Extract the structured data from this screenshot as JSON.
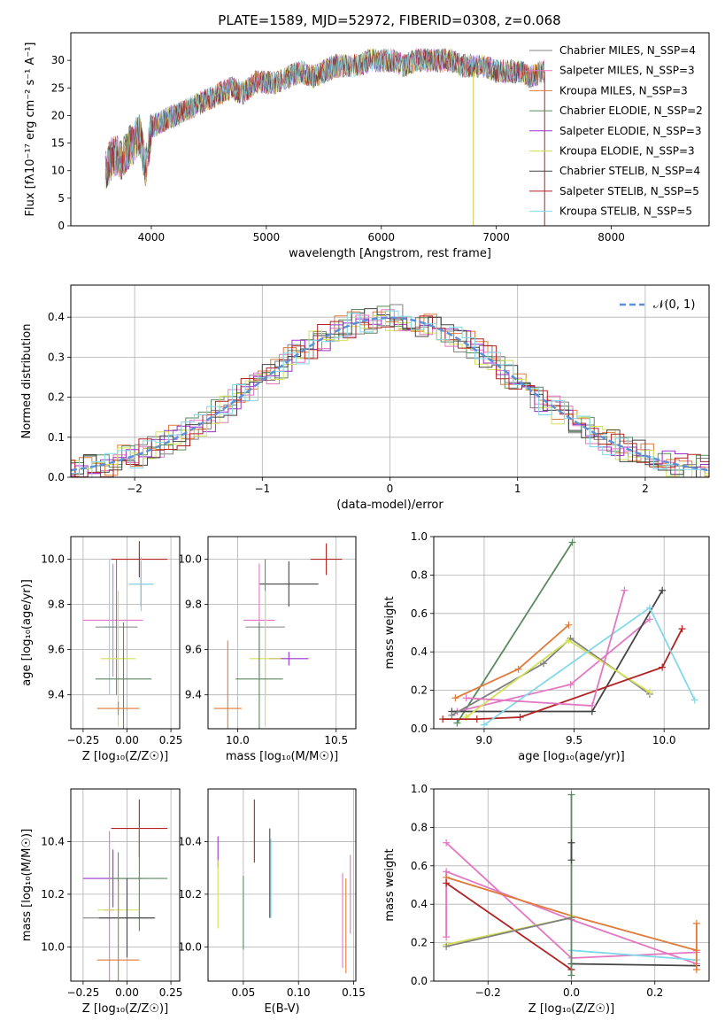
{
  "figure_title": "PLATE=1589, MJD=52972, FIBERID=0308, z=0.068",
  "colors": [
    "#808080",
    "#e377c2",
    "#e07b39",
    "#5a8a5f",
    "#9b30c9",
    "#d4e157",
    "#444444",
    "#b22222",
    "#80d8e8"
  ],
  "chart_data": [
    {
      "id": "spectrum",
      "type": "line",
      "title": "PLATE=1589, MJD=52972, FIBERID=0308, z=0.068",
      "xlabel": "wavelength [Angstrom, rest frame]",
      "ylabel": "Flux [fλ10⁻¹⁷ erg cm⁻² s⁻¹ A⁻¹]",
      "xlim": [
        3300,
        8850
      ],
      "ylim": [
        0,
        35
      ],
      "xticks": [
        "4000",
        "5000",
        "6000",
        "7000",
        "8000"
      ],
      "yticks": [
        "0",
        "5",
        "10",
        "15",
        "20",
        "25",
        "30"
      ],
      "grid": false,
      "legend": "top-right",
      "x": [
        3600,
        3650,
        3700,
        3750,
        3800,
        3850,
        3900,
        3950,
        4000,
        4100,
        4200,
        4300,
        4400,
        4500,
        4600,
        4700,
        4800,
        4900,
        5000,
        5100,
        5200,
        5300,
        5400,
        5500,
        5600,
        5700,
        5800,
        5900,
        6000,
        6100,
        6200,
        6300,
        6400,
        6500,
        6600,
        6700,
        6800,
        6900,
        7000,
        7100,
        7200,
        7300,
        7400
      ],
      "y_model": [
        10,
        12,
        13,
        12,
        14,
        15,
        17,
        10,
        18,
        19,
        20,
        21,
        22,
        23,
        24,
        25,
        24,
        26,
        26,
        26,
        27,
        28,
        27,
        28,
        29,
        29,
        29,
        30,
        30,
        30,
        29,
        30,
        30,
        30,
        30,
        29,
        29,
        29,
        28,
        28,
        28,
        27,
        28
      ],
      "series": [
        {
          "name": "Chabrier MILES, N_SSP=4"
        },
        {
          "name": "Salpeter MILES, N_SSP=3"
        },
        {
          "name": "Kroupa MILES, N_SSP=3"
        },
        {
          "name": "Chabrier ELODIE, N_SSP=2"
        },
        {
          "name": "Salpeter ELODIE, N_SSP=3"
        },
        {
          "name": "Kroupa ELODIE, N_SSP=3"
        },
        {
          "name": "Chabrier STELIB, N_SSP=4"
        },
        {
          "name": "Salpeter STELIB, N_SSP=5"
        },
        {
          "name": "Kroupa STELIB, N_SSP=5"
        }
      ]
    },
    {
      "id": "residuals",
      "type": "line",
      "xlabel": "(data-model)/error",
      "ylabel": "Normed distribution",
      "xlim": [
        -2.5,
        2.5
      ],
      "ylim": [
        0,
        0.48
      ],
      "xticks": [
        "−2",
        "−1",
        "0",
        "1",
        "2"
      ],
      "yticks": [
        "0.0",
        "0.1",
        "0.2",
        "0.3",
        "0.4"
      ],
      "grid": true,
      "legend": "top-right",
      "gaussian_label": "𝒩(0, 1)"
    },
    {
      "id": "age_vs_Z",
      "type": "scatter",
      "xlabel": "Z [log₁₀(Z/Z☉)]",
      "ylabel": "age [log₁₀(age/yr)]",
      "xlim": [
        -0.32,
        0.3
      ],
      "ylim": [
        9.25,
        10.1
      ],
      "xticks": [
        "−0.25",
        "0.00",
        "0.25"
      ],
      "yticks": [
        "9.4",
        "9.6",
        "9.8",
        "10.0"
      ],
      "grid": true,
      "points": [
        {
          "x": 0.07,
          "xerr": 0.16,
          "y": 10.0,
          "yerr": 0.08,
          "c": 7
        },
        {
          "x": 0.08,
          "xerr": 0.07,
          "y": 9.89,
          "yerr": 0.1,
          "c": 6
        },
        {
          "x": 0.08,
          "xerr": 0.07,
          "y": 9.89,
          "yerr": 0.12,
          "c": 8
        },
        {
          "x": -0.08,
          "xerr": 0.17,
          "y": 9.73,
          "yerr": 0.25,
          "c": 1
        },
        {
          "x": -0.1,
          "xerr": 0.03,
          "y": 9.7,
          "yerr": 0.3,
          "c": 8
        },
        {
          "x": -0.06,
          "xerr": 0.12,
          "y": 9.7,
          "yerr": 0.3,
          "c": 0
        },
        {
          "x": -0.05,
          "xerr": 0.1,
          "y": 9.56,
          "yerr": 0.3,
          "c": 5
        },
        {
          "x": -0.02,
          "xerr": 0.16,
          "y": 9.47,
          "yerr": 0.25,
          "c": 3
        },
        {
          "x": -0.05,
          "xerr": 0.12,
          "y": 9.34,
          "yerr": 0.03,
          "c": 2
        }
      ]
    },
    {
      "id": "age_vs_mass",
      "type": "scatter",
      "xlabel": "mass [log₁₀(M/M☉)]",
      "ylabel": "",
      "xlim": [
        9.85,
        10.6
      ],
      "ylim": [
        9.25,
        10.1
      ],
      "xticks": [
        "10.0",
        "10.5"
      ],
      "yticks": [
        "9.4",
        "9.6",
        "9.8",
        "10.0"
      ],
      "grid": true,
      "points": [
        {
          "x": 10.45,
          "xerr": 0.08,
          "y": 10.0,
          "yerr": 0.07,
          "c": 7
        },
        {
          "x": 10.26,
          "xerr": 0.15,
          "y": 9.89,
          "yerr": 0.1,
          "c": 6
        },
        {
          "x": 10.11,
          "xerr": 0.08,
          "y": 9.73,
          "yerr": 0.25,
          "c": 1
        },
        {
          "x": 10.14,
          "xerr": 0.1,
          "y": 9.7,
          "yerr": 0.3,
          "c": 0
        },
        {
          "x": 10.26,
          "xerr": 0.1,
          "y": 9.56,
          "yerr": 0.03,
          "c": 4
        },
        {
          "x": 10.14,
          "xerr": 0.08,
          "y": 9.56,
          "yerr": 0.3,
          "c": 5
        },
        {
          "x": 10.11,
          "xerr": 0.12,
          "y": 9.47,
          "yerr": 0.25,
          "c": 3
        },
        {
          "x": 9.95,
          "xerr": 0.07,
          "y": 9.34,
          "yerr": 0.3,
          "c": 2
        }
      ]
    },
    {
      "id": "weight_vs_age",
      "type": "line",
      "xlabel": "age [log₁₀(age/yr)]",
      "ylabel": "mass weight",
      "xlim": [
        8.72,
        10.25
      ],
      "ylim": [
        0,
        1.0
      ],
      "xticks": [
        "9.0",
        "9.5",
        "10.0"
      ],
      "yticks": [
        "0.0",
        "0.2",
        "0.4",
        "0.6",
        "0.8",
        "1.0"
      ],
      "grid": true,
      "series": [
        {
          "c": 3,
          "x": [
            8.85,
            9.49
          ],
          "y": [
            0.03,
            0.97
          ]
        },
        {
          "c": 2,
          "x": [
            8.84,
            9.19,
            9.47
          ],
          "y": [
            0.16,
            0.31,
            0.54
          ]
        },
        {
          "c": 1,
          "x": [
            8.85,
            9.48,
            9.92
          ],
          "y": [
            0.09,
            0.23,
            0.57
          ]
        },
        {
          "c": 6,
          "x": [
            8.82,
            9.6,
            9.99
          ],
          "y": [
            0.09,
            0.09,
            0.72
          ]
        },
        {
          "c": 0,
          "x": [
            8.82,
            9.33,
            9.48,
            9.92
          ],
          "y": [
            0.07,
            0.34,
            0.47,
            0.18
          ]
        },
        {
          "c": 5,
          "x": [
            8.9,
            9.47,
            9.92
          ],
          "y": [
            0.06,
            0.46,
            0.19
          ]
        },
        {
          "c": 7,
          "x": [
            8.77,
            8.96,
            9.2,
            9.99,
            10.1
          ],
          "y": [
            0.05,
            0.05,
            0.06,
            0.32,
            0.52
          ]
        },
        {
          "c": 8,
          "x": [
            9.0,
            9.92,
            10.17
          ],
          "y": [
            0.02,
            0.63,
            0.15
          ]
        },
        {
          "c": 1,
          "x": [
            8.9,
            9.6,
            9.78
          ],
          "y": [
            0.16,
            0.12,
            0.72
          ]
        }
      ]
    },
    {
      "id": "mass_vs_Z",
      "type": "scatter",
      "xlabel": "Z [log₁₀(Z/Z☉)]",
      "ylabel": "mass [log₁₀(M/M☉)]",
      "xlim": [
        -0.32,
        0.3
      ],
      "ylim": [
        9.87,
        10.6
      ],
      "xticks": [
        "−0.25",
        "0.00",
        "0.25"
      ],
      "yticks": [
        "10.0",
        "10.2",
        "10.4"
      ],
      "grid": true,
      "points": [
        {
          "x": 0.07,
          "xerr": 0.16,
          "y": 10.45,
          "yerr": 0.11,
          "c": 7
        },
        {
          "x": -0.08,
          "xerr": 0.17,
          "y": 10.26,
          "yerr": 0.11,
          "c": 4
        },
        {
          "x": 0.07,
          "xerr": 0.16,
          "y": 10.26,
          "yerr": 0.2,
          "c": 3
        },
        {
          "x": -0.1,
          "xerr": 0.03,
          "y": 10.14,
          "yerr": 0.3,
          "c": 1
        },
        {
          "x": -0.05,
          "xerr": 0.12,
          "y": 10.14,
          "yerr": 0.12,
          "c": 5
        },
        {
          "x": -0.05,
          "xerr": 0.2,
          "y": 10.11,
          "yerr": 0.25,
          "c": 0
        },
        {
          "x": 0.0,
          "xerr": 0.16,
          "y": 10.11,
          "yerr": 0.15,
          "c": 6
        },
        {
          "x": -0.05,
          "xerr": 0.12,
          "y": 9.95,
          "yerr": 0.3,
          "c": 2
        }
      ]
    },
    {
      "id": "mass_vs_ebv",
      "type": "scatter",
      "xlabel": "E(B-V)",
      "ylabel": "",
      "xlim": [
        0.018,
        0.152
      ],
      "ylim": [
        9.87,
        10.6
      ],
      "xticks": [
        "0.05",
        "0.10",
        "0.15"
      ],
      "yticks": [
        "10.0",
        "10.2",
        "10.4"
      ],
      "grid": true,
      "points": [
        {
          "x": 0.027,
          "y": 10.36,
          "yerr": 0.06,
          "c": 4
        },
        {
          "x": 0.027,
          "y": 10.2,
          "yerr": 0.13,
          "c": 5
        },
        {
          "x": 0.05,
          "y": 10.13,
          "yerr": 0.14,
          "c": 3
        },
        {
          "x": 0.06,
          "y": 10.44,
          "yerr": 0.12,
          "c": 7
        },
        {
          "x": 0.074,
          "y": 10.28,
          "yerr": 0.17,
          "c": 6
        },
        {
          "x": 0.075,
          "y": 10.26,
          "yerr": 0.15,
          "c": 8
        },
        {
          "x": 0.14,
          "y": 10.1,
          "yerr": 0.18,
          "c": 1
        },
        {
          "x": 0.143,
          "y": 10.08,
          "yerr": 0.18,
          "c": 2
        },
        {
          "x": 0.147,
          "y": 10.2,
          "yerr": 0.15,
          "c": 1
        }
      ]
    },
    {
      "id": "weight_vs_Z",
      "type": "line",
      "xlabel": "Z [log₁₀(Z/Z☉)]",
      "ylabel": "mass weight",
      "xlim": [
        -0.33,
        0.33
      ],
      "ylim": [
        0,
        1.0
      ],
      "xticks": [
        "−0.2",
        "0.0",
        "0.2"
      ],
      "yticks": [
        "0.0",
        "0.2",
        "0.4",
        "0.6",
        "0.8",
        "1.0"
      ],
      "grid": true,
      "series": [
        {
          "c": 1,
          "x": [
            -0.3,
            0.0,
            0.3
          ],
          "y": [
            0.72,
            0.12,
            0.15
          ]
        },
        {
          "c": 1,
          "x": [
            -0.3,
            -0.3,
            0.0,
            0.3
          ],
          "y": [
            0.23,
            0.57,
            0.32,
            0.09
          ]
        },
        {
          "c": 2,
          "x": [
            -0.3,
            0.0,
            0.3
          ],
          "y": [
            0.54,
            0.34,
            0.16
          ]
        },
        {
          "c": 7,
          "x": [
            -0.3,
            0.0,
            0.0
          ],
          "y": [
            0.51,
            0.06,
            0.06
          ]
        },
        {
          "c": 5,
          "x": [
            -0.3,
            0.0,
            0.0
          ],
          "y": [
            0.19,
            0.33,
            0.34
          ]
        },
        {
          "c": 0,
          "x": [
            -0.3,
            0.0
          ],
          "y": [
            0.18,
            0.33
          ]
        },
        {
          "c": 6,
          "x": [
            0.0,
            0.3
          ],
          "y": [
            0.09,
            0.08
          ]
        },
        {
          "c": 8,
          "x": [
            0.0,
            0.3
          ],
          "y": [
            0.16,
            0.11
          ]
        },
        {
          "c": 3,
          "x": [
            0.0,
            0.0
          ],
          "y": [
            0.03,
            0.97
          ]
        },
        {
          "c": 6,
          "x": [
            0.0,
            0.0
          ],
          "y": [
            0.72,
            0.63
          ]
        },
        {
          "c": 2,
          "x": [
            0.3,
            0.3
          ],
          "y": [
            0.06,
            0.3
          ]
        }
      ]
    }
  ]
}
